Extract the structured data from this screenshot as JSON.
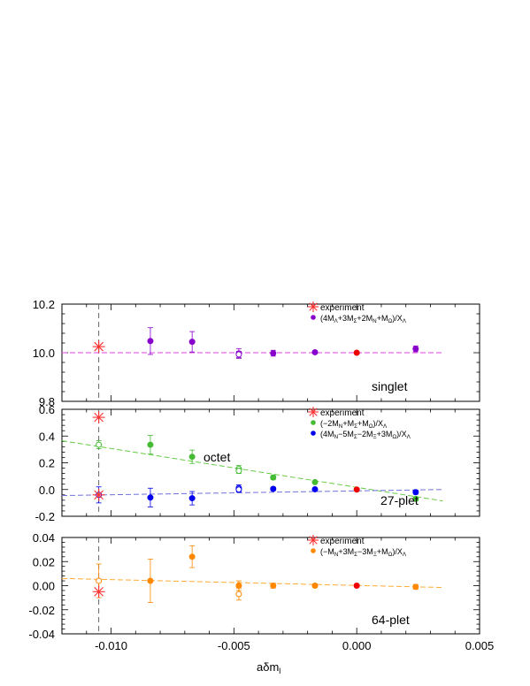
{
  "chart_data": {
    "type": "scatter",
    "shared_x": {
      "xlabel": "aδm_l",
      "xlim": [
        -0.012,
        0.005
      ],
      "xticks": [
        -0.01,
        -0.005,
        0.0,
        0.005
      ],
      "xtick_labels": [
        "-0.010",
        "-0.005",
        "0.000",
        "0.005"
      ],
      "vline_x": -0.0105
    },
    "panels": [
      {
        "id": "top",
        "ylim": [
          9.8,
          10.2
        ],
        "yticks": [
          9.8,
          10.0,
          10.2
        ],
        "ytick_labels": [
          "9.8",
          "10.0",
          "10.2"
        ],
        "label": "singlet",
        "legend": [
          {
            "kind": "experiment",
            "text": "experiment",
            "color": "#ff3030"
          },
          {
            "kind": "dot",
            "text": "(4M_Λ+3M_Σ+2M_N+M_Ω)/X_Λ",
            "color": "#8800cc"
          }
        ],
        "series": [
          {
            "color": "#8800cc",
            "fit_color": "#e040e0",
            "fit": [
              [
                -0.012,
                10.0
              ],
              [
                0.0035,
                10.0
              ]
            ],
            "points": [
              {
                "x": -0.0084,
                "y": 10.048,
                "err": 0.055,
                "filled": true
              },
              {
                "x": -0.0067,
                "y": 10.045,
                "err": 0.042,
                "filled": true
              },
              {
                "x": -0.0048,
                "y": 9.997,
                "err": 0.02,
                "filled": false
              },
              {
                "x": -0.0048,
                "y": 9.993,
                "err": 0.013,
                "filled": false
              },
              {
                "x": -0.0034,
                "y": 9.998,
                "err": 0.012,
                "filled": true
              },
              {
                "x": -0.0017,
                "y": 10.002,
                "err": 0.005,
                "filled": true
              },
              {
                "x": 0.0024,
                "y": 10.016,
                "err": 0.012,
                "filled": true
              }
            ]
          }
        ],
        "reference": [
          {
            "x": 0.0,
            "y": 10.0,
            "color": "#ee0000"
          }
        ],
        "experiments": [
          {
            "x": -0.0105,
            "y": 10.025
          }
        ]
      },
      {
        "id": "middle",
        "ylim": [
          -0.2,
          0.6
        ],
        "yticks": [
          -0.2,
          0.0,
          0.2,
          0.4,
          0.6
        ],
        "ytick_labels": [
          "-0.2",
          "0.0",
          "0.2",
          "0.4",
          "0.6"
        ],
        "label": "27-plet",
        "label2": "octet",
        "legend": [
          {
            "kind": "experiment",
            "text": "experiment",
            "color": "#ff3030"
          },
          {
            "kind": "dot",
            "text": "(−2M_N+M_Σ+M_Ω)/X_Λ",
            "color": "#44bb33"
          },
          {
            "kind": "dot",
            "text": "(4M_N−5M_Σ−2M_Ξ+3M_Ω)/X_Λ",
            "color": "#0000ee"
          }
        ],
        "series": [
          {
            "color": "#44bb33",
            "fit_color": "#66cc44",
            "fit": [
              [
                -0.012,
                0.365
              ],
              [
                0.0035,
                -0.085
              ]
            ],
            "points": [
              {
                "x": -0.0105,
                "y": 0.335,
                "err": 0.03,
                "filled": false
              },
              {
                "x": -0.0084,
                "y": 0.335,
                "err": 0.07,
                "filled": true
              },
              {
                "x": -0.0067,
                "y": 0.245,
                "err": 0.05,
                "filled": true
              },
              {
                "x": -0.0048,
                "y": 0.155,
                "err": 0.025,
                "filled": false
              },
              {
                "x": -0.0048,
                "y": 0.14,
                "err": 0.02,
                "filled": false
              },
              {
                "x": -0.0034,
                "y": 0.09,
                "err": 0.015,
                "filled": true
              },
              {
                "x": -0.0017,
                "y": 0.055,
                "err": 0.008,
                "filled": true
              },
              {
                "x": 0.0024,
                "y": -0.07,
                "err": 0.015,
                "filled": true
              }
            ]
          },
          {
            "color": "#0000ee",
            "fit_color": "#7070dd",
            "fit": [
              [
                -0.012,
                -0.045
              ],
              [
                0.0035,
                0.0
              ]
            ],
            "points": [
              {
                "x": -0.0105,
                "y": -0.04,
                "err": 0.06,
                "filled": false
              },
              {
                "x": -0.0084,
                "y": -0.06,
                "err": 0.07,
                "filled": true
              },
              {
                "x": -0.0067,
                "y": -0.065,
                "err": 0.05,
                "filled": true
              },
              {
                "x": -0.0048,
                "y": 0.01,
                "err": 0.025,
                "filled": false
              },
              {
                "x": -0.0048,
                "y": 0.0,
                "err": 0.02,
                "filled": false
              },
              {
                "x": -0.0034,
                "y": 0.005,
                "err": 0.012,
                "filled": true
              },
              {
                "x": -0.0017,
                "y": 0.002,
                "err": 0.008,
                "filled": true
              },
              {
                "x": 0.0024,
                "y": -0.02,
                "err": 0.015,
                "filled": true
              }
            ]
          }
        ],
        "reference": [
          {
            "x": 0.0,
            "y": 0.0,
            "color": "#ee0000"
          }
        ],
        "experiments": [
          {
            "x": -0.0105,
            "y": 0.54
          },
          {
            "x": -0.0105,
            "y": -0.04
          }
        ]
      },
      {
        "id": "bottom",
        "ylim": [
          -0.04,
          0.04
        ],
        "yticks": [
          -0.04,
          -0.02,
          0.0,
          0.02,
          0.04
        ],
        "ytick_labels": [
          "-0.04",
          "-0.02",
          "0.00",
          "0.02",
          "0.04"
        ],
        "label": "64-plet",
        "legend": [
          {
            "kind": "experiment",
            "text": "experiment",
            "color": "#ff3030"
          },
          {
            "kind": "dot",
            "text": "(−M_N+3M_Σ−3M_Ξ+M_Ω)/X_Λ",
            "color": "#ff8800"
          }
        ],
        "series": [
          {
            "color": "#ff8800",
            "fit_color": "#ffaa33",
            "fit": [
              [
                -0.012,
                0.006
              ],
              [
                0.0035,
                -0.0015
              ]
            ],
            "points": [
              {
                "x": -0.0105,
                "y": 0.004,
                "err": 0.014,
                "filled": false
              },
              {
                "x": -0.0084,
                "y": 0.004,
                "err": 0.018,
                "filled": true
              },
              {
                "x": -0.0067,
                "y": 0.024,
                "err": 0.009,
                "filled": true
              },
              {
                "x": -0.0048,
                "y": 0.0,
                "err": 0.004,
                "filled": true
              },
              {
                "x": -0.0048,
                "y": -0.007,
                "err": 0.005,
                "filled": false
              },
              {
                "x": -0.0034,
                "y": 0.0,
                "err": 0.002,
                "filled": true
              },
              {
                "x": -0.0017,
                "y": 0.0,
                "err": 0.0015,
                "filled": true
              },
              {
                "x": 0.0024,
                "y": -0.001,
                "err": 0.002,
                "filled": true
              }
            ]
          }
        ],
        "reference": [
          {
            "x": 0.0,
            "y": 0.0,
            "color": "#ee0000"
          }
        ],
        "experiments": [
          {
            "x": -0.0105,
            "y": -0.005
          }
        ]
      }
    ]
  }
}
